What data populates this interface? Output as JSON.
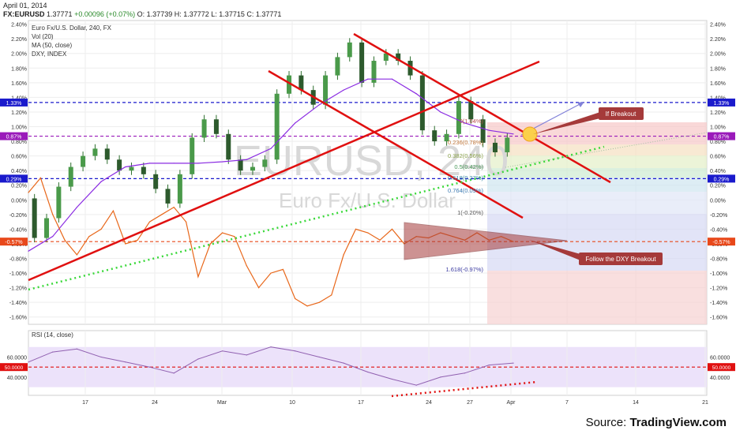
{
  "header": {
    "date": "April 01, 2014",
    "symbol": "FX:EURUSD",
    "last": "1.37771",
    "change": "+0.00096 (+0.07%)",
    "open": "O: 1.37739",
    "high": "H: 1.37772",
    "low": "L: 1.37715",
    "close": "C: 1.37771"
  },
  "legend": {
    "instrument": "Euro Fx/U.S. Dollar, 240, FX",
    "vol": "Vol (20)",
    "ma": "MA (50, close)",
    "dxy": "DXY, INDEX",
    "rsi": "RSI (14, close)"
  },
  "watermark": {
    "symbol": "EURUSD, 240",
    "name": "Euro Fx/U.S. Dollar"
  },
  "annotations": {
    "if_breakout": "If Breakout",
    "follow_dxy": "Follow the DXY Breakout"
  },
  "fib_labels": [
    "0(1.04%)",
    "0.236(0.78%)",
    "0.382(0.56%)",
    "0.5(0.42%)",
    "0.618(0.27%)",
    "0.764(0.09%)",
    "1(-0.20%)",
    "1.618(-0.97%)"
  ],
  "source": {
    "prefix": "Source: ",
    "brand": "TradingView.com"
  },
  "chart_data": {
    "type": "line",
    "ylabel": "",
    "price_axis_ticks": [
      "2.40%",
      "2.20%",
      "2.00%",
      "1.80%",
      "1.60%",
      "1.40%",
      "1.20%",
      "1.00%",
      "0.80%",
      "0.60%",
      "0.40%",
      "0.20%",
      "0.00%",
      "-0.20%",
      "-0.40%",
      "-0.60%",
      "-0.80%",
      "-1.00%",
      "-1.20%",
      "-1.40%",
      "-1.60%"
    ],
    "y_range": [
      -1.7,
      2.45
    ],
    "rsi_axis_ticks": [
      "60.0000",
      "50.0000",
      "40.0000"
    ],
    "rsi_range": [
      25,
      80
    ],
    "time_axis_ticks": [
      "17",
      "24",
      "Mar",
      "10",
      "17",
      "24",
      "27",
      "Apr",
      "7",
      "14",
      "21"
    ],
    "horizontal_levels": [
      {
        "label": "1.33%",
        "value": 1.33,
        "color": "#1a1acc"
      },
      {
        "label": "0.87%",
        "value": 0.87,
        "color": "#9a1aba"
      },
      {
        "label": "0.29%",
        "value": 0.29,
        "color": "#1a1acc"
      },
      {
        "label": "-0.57%",
        "value": -0.57,
        "color": "#e8481a"
      }
    ],
    "rsi_level": {
      "label": "50.0000",
      "value": 50
    },
    "series": [
      {
        "name": "EURUSD",
        "x": [
          0,
          3,
          6,
          9,
          12,
          15,
          18,
          21,
          24,
          27,
          30,
          33,
          36,
          39,
          42,
          45,
          48,
          51,
          54,
          57,
          60,
          63,
          66,
          69,
          72,
          75,
          78,
          81,
          84,
          87,
          90,
          93,
          96,
          99,
          102,
          105,
          108,
          111,
          114,
          117,
          120
        ],
        "values": [
          0.02,
          -0.52,
          -0.25,
          0.18,
          0.45,
          0.6,
          0.7,
          0.55,
          0.4,
          0.45,
          0.35,
          0.15,
          -0.05,
          0.35,
          0.85,
          1.1,
          0.9,
          0.55,
          0.4,
          0.45,
          0.55,
          1.45,
          1.7,
          1.5,
          1.3,
          1.7,
          1.95,
          2.15,
          1.6,
          1.9,
          2.0,
          1.9,
          1.7,
          0.95,
          0.8,
          0.9,
          1.35,
          1.1,
          0.78,
          0.65,
          0.85
        ]
      },
      {
        "name": "MA (50, close)",
        "x": [
          0,
          6,
          12,
          18,
          24,
          30,
          36,
          42,
          48,
          54,
          60,
          66,
          72,
          78,
          84,
          90,
          96,
          102,
          108,
          114,
          120
        ],
        "values": [
          -0.7,
          -0.5,
          -0.1,
          0.25,
          0.45,
          0.5,
          0.5,
          0.5,
          0.52,
          0.55,
          0.7,
          1.05,
          1.3,
          1.5,
          1.65,
          1.65,
          1.45,
          1.2,
          1.05,
          0.95,
          0.9
        ]
      },
      {
        "name": "DXY, INDEX",
        "x": [
          0,
          3,
          6,
          9,
          12,
          15,
          18,
          21,
          24,
          27,
          30,
          33,
          36,
          39,
          42,
          45,
          48,
          51,
          54,
          57,
          60,
          63,
          66,
          69,
          72,
          75,
          78,
          81,
          84,
          87,
          90,
          93,
          96,
          99,
          102,
          105,
          108,
          111,
          114,
          117,
          120
        ],
        "values": [
          0.1,
          0.3,
          -0.2,
          -0.55,
          -0.75,
          -0.5,
          -0.4,
          -0.15,
          -0.6,
          -0.55,
          -0.3,
          -0.2,
          -0.1,
          -0.3,
          -1.05,
          -0.6,
          -0.45,
          -0.5,
          -0.9,
          -1.2,
          -1.0,
          -0.95,
          -1.35,
          -1.45,
          -1.4,
          -1.3,
          -0.75,
          -0.4,
          -0.45,
          -0.55,
          -0.4,
          -0.6,
          -0.5,
          -0.52,
          -0.45,
          -0.5,
          -0.55,
          -0.45,
          -0.55,
          -0.5,
          -0.57
        ]
      },
      {
        "name": "RSI (14, close)",
        "x": [
          0,
          6,
          12,
          18,
          24,
          30,
          36,
          42,
          48,
          54,
          60,
          66,
          72,
          78,
          84,
          90,
          96,
          102,
          108,
          114,
          120
        ],
        "values": [
          55,
          65,
          68,
          60,
          55,
          50,
          44,
          58,
          66,
          62,
          70,
          66,
          60,
          54,
          45,
          38,
          32,
          40,
          44,
          52,
          54
        ]
      }
    ]
  }
}
